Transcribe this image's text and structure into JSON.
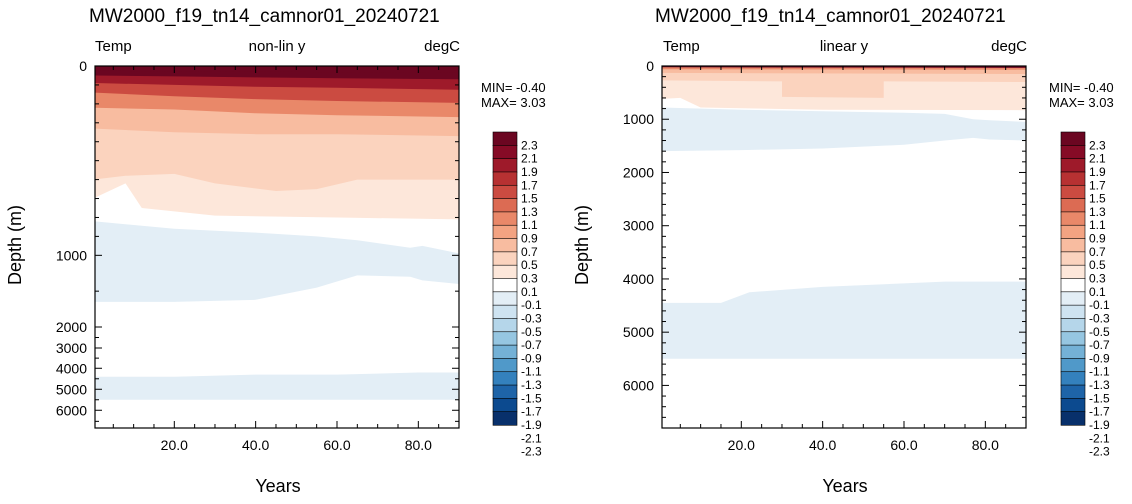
{
  "colors": {
    "scale": [
      "#08306b",
      "#0c4a8f",
      "#1e64a8",
      "#3481bd",
      "#5099c9",
      "#74b1d6",
      "#96c6e1",
      "#b5d6ea",
      "#cee3f1",
      "#e3eef6",
      "#ffffff",
      "#fde7da",
      "#fbd3be",
      "#f8bca0",
      "#f3a382",
      "#e98869",
      "#dc6b53",
      "#cb4b41",
      "#b73132",
      "#9e1a2a",
      "#860b26",
      "#6b0621"
    ]
  },
  "chart_data": [
    {
      "type": "heatmap",
      "title": "MW2000_f19_tn14_camnor01_20240721",
      "subtitle_left": "Temp",
      "subtitle_center": "non-lin y",
      "subtitle_right": "degC",
      "xlabel": "Years",
      "ylabel": "Depth (m)",
      "xlim": [
        0.5,
        90
      ],
      "ylim": [
        0,
        6800
      ],
      "y_scale": "non-linear",
      "xticks": [
        "20.0",
        "40.0",
        "60.0",
        "80.0"
      ],
      "yticks": [
        "0",
        "1000",
        "2000",
        "3000",
        "4000",
        "5000",
        "6000"
      ],
      "min_label": "MIN= -0.40",
      "max_label": "MAX=  3.03",
      "levels": [
        "2.3",
        "2.1",
        "1.9",
        "1.7",
        "1.5",
        "1.3",
        "1.1",
        "0.9",
        "0.7",
        "0.5",
        "0.3",
        "0.1",
        "-0.1",
        "-0.3",
        "-0.5",
        "-0.7",
        "-0.9",
        "-1.1",
        "-1.3",
        "-1.5",
        "-1.7",
        "-1.9",
        "-2.1",
        "-2.3"
      ],
      "layers": [
        {
          "value": -0.2,
          "depth_profile": [
            [
              0,
              4400,
              5500
            ],
            [
              20,
              4400,
              5500
            ],
            [
              40,
              4300,
              5500
            ],
            [
              60,
              4300,
              5500
            ],
            [
              80,
              4200,
              5500
            ],
            [
              90,
              4200,
              5500
            ]
          ]
        },
        {
          "value": -0.2,
          "depth_profile": [
            [
              0,
              820,
              1650
            ],
            [
              20,
              860,
              1650
            ],
            [
              40,
              880,
              1620
            ],
            [
              55,
              900,
              1450
            ],
            [
              65,
              920,
              1280
            ],
            [
              78,
              960,
              1300
            ],
            [
              81,
              950,
              1350
            ],
            [
              90,
              990,
              1400
            ]
          ]
        },
        {
          "value": 0.2,
          "depth_profile": [
            [
              0,
              0,
              700
            ],
            [
              8,
              0,
              620
            ],
            [
              12,
              0,
              750
            ],
            [
              30,
              0,
              790
            ],
            [
              60,
              0,
              800
            ],
            [
              90,
              0,
              810
            ]
          ]
        },
        {
          "value": 0.4,
          "depth_profile": [
            [
              0,
              0,
              600
            ],
            [
              8,
              0,
              580
            ],
            [
              20,
              0,
              570
            ],
            [
              30,
              0,
              620
            ],
            [
              45,
              0,
              660
            ],
            [
              55,
              0,
              650
            ],
            [
              65,
              0,
              600
            ],
            [
              90,
              0,
              600
            ]
          ]
        },
        {
          "value": 0.6,
          "depth_profile": [
            [
              0,
              0,
              330
            ],
            [
              20,
              0,
              350
            ],
            [
              40,
              0,
              360
            ],
            [
              60,
              0,
              360
            ],
            [
              90,
              0,
              370
            ]
          ]
        },
        {
          "value": 1.0,
          "depth_profile": [
            [
              0,
              0,
              220
            ],
            [
              20,
              0,
              230
            ],
            [
              40,
              0,
              250
            ],
            [
              60,
              0,
              260
            ],
            [
              90,
              0,
              270
            ]
          ]
        },
        {
          "value": 1.4,
          "depth_profile": [
            [
              0,
              0,
              140
            ],
            [
              20,
              0,
              160
            ],
            [
              40,
              0,
              175
            ],
            [
              60,
              0,
              185
            ],
            [
              90,
              0,
              195
            ]
          ]
        },
        {
          "value": 1.8,
          "depth_profile": [
            [
              0,
              0,
              90
            ],
            [
              20,
              0,
              100
            ],
            [
              40,
              0,
              110
            ],
            [
              60,
              0,
              115
            ],
            [
              90,
              0,
              125
            ]
          ]
        },
        {
          "value": 2.2,
          "depth_profile": [
            [
              0,
              0,
              50
            ],
            [
              20,
              0,
              55
            ],
            [
              40,
              0,
              60
            ],
            [
              60,
              0,
              65
            ],
            [
              90,
              0,
              70
            ]
          ]
        },
        {
          "value": 2.5,
          "depth_profile": [
            [
              0,
              0,
              25
            ],
            [
              20,
              0,
              28
            ],
            [
              40,
              0,
              30
            ],
            [
              60,
              0,
              32
            ],
            [
              90,
              0,
              35
            ]
          ]
        }
      ]
    },
    {
      "type": "heatmap",
      "title": "MW2000_f19_tn14_camnor01_20240721",
      "subtitle_left": "Temp",
      "subtitle_center": "linear y",
      "subtitle_right": "degC",
      "xlabel": "Years",
      "ylabel": "Depth (m)",
      "xlim": [
        0.5,
        90
      ],
      "ylim": [
        0,
        6800
      ],
      "y_scale": "linear",
      "xticks": [
        "20.0",
        "40.0",
        "60.0",
        "80.0"
      ],
      "yticks": [
        "0",
        "1000",
        "2000",
        "3000",
        "4000",
        "5000",
        "6000"
      ],
      "min_label": "MIN= -0.40",
      "max_label": "MAX=  3.03",
      "levels": [
        "2.3",
        "2.1",
        "1.9",
        "1.7",
        "1.5",
        "1.3",
        "1.1",
        "0.9",
        "0.7",
        "0.5",
        "0.3",
        "0.1",
        "-0.1",
        "-0.3",
        "-0.5",
        "-0.7",
        "-0.9",
        "-1.1",
        "-1.3",
        "-1.5",
        "-1.7",
        "-1.9",
        "-2.1",
        "-2.3"
      ],
      "layers": [
        {
          "value": -0.2,
          "depth_profile": [
            [
              0,
              4450,
              5500
            ],
            [
              15,
              4450,
              5500
            ],
            [
              22,
              4250,
              5500
            ],
            [
              40,
              4150,
              5500
            ],
            [
              70,
              4050,
              5500
            ],
            [
              90,
              4050,
              5500
            ]
          ]
        },
        {
          "value": -0.2,
          "depth_profile": [
            [
              0,
              780,
              1600
            ],
            [
              20,
              820,
              1580
            ],
            [
              40,
              850,
              1550
            ],
            [
              60,
              880,
              1480
            ],
            [
              70,
              900,
              1400
            ],
            [
              77,
              1000,
              1350
            ],
            [
              81,
              1020,
              1380
            ],
            [
              90,
              1050,
              1400
            ]
          ]
        },
        {
          "value": 0.2,
          "depth_profile": [
            [
              0,
              0,
              620
            ],
            [
              5,
              0,
              600
            ],
            [
              10,
              0,
              780
            ],
            [
              40,
              0,
              820
            ],
            [
              90,
              0,
              830
            ]
          ]
        },
        {
          "value": 0.4,
          "depth_profile": [
            [
              0,
              0,
              270
            ],
            [
              30,
              0,
              290
            ],
            [
              30,
              0,
              580
            ],
            [
              55,
              0,
              600
            ],
            [
              55,
              0,
              290
            ],
            [
              90,
              0,
              300
            ]
          ]
        },
        {
          "value": 0.6,
          "depth_profile": [
            [
              0,
              0,
              130
            ],
            [
              90,
              0,
              150
            ]
          ]
        },
        {
          "value": 1.0,
          "depth_profile": [
            [
              0,
              0,
              60
            ],
            [
              90,
              0,
              70
            ]
          ]
        },
        {
          "value": 2.5,
          "depth_profile": [
            [
              0,
              0,
              25
            ],
            [
              90,
              0,
              35
            ]
          ]
        }
      ]
    }
  ]
}
